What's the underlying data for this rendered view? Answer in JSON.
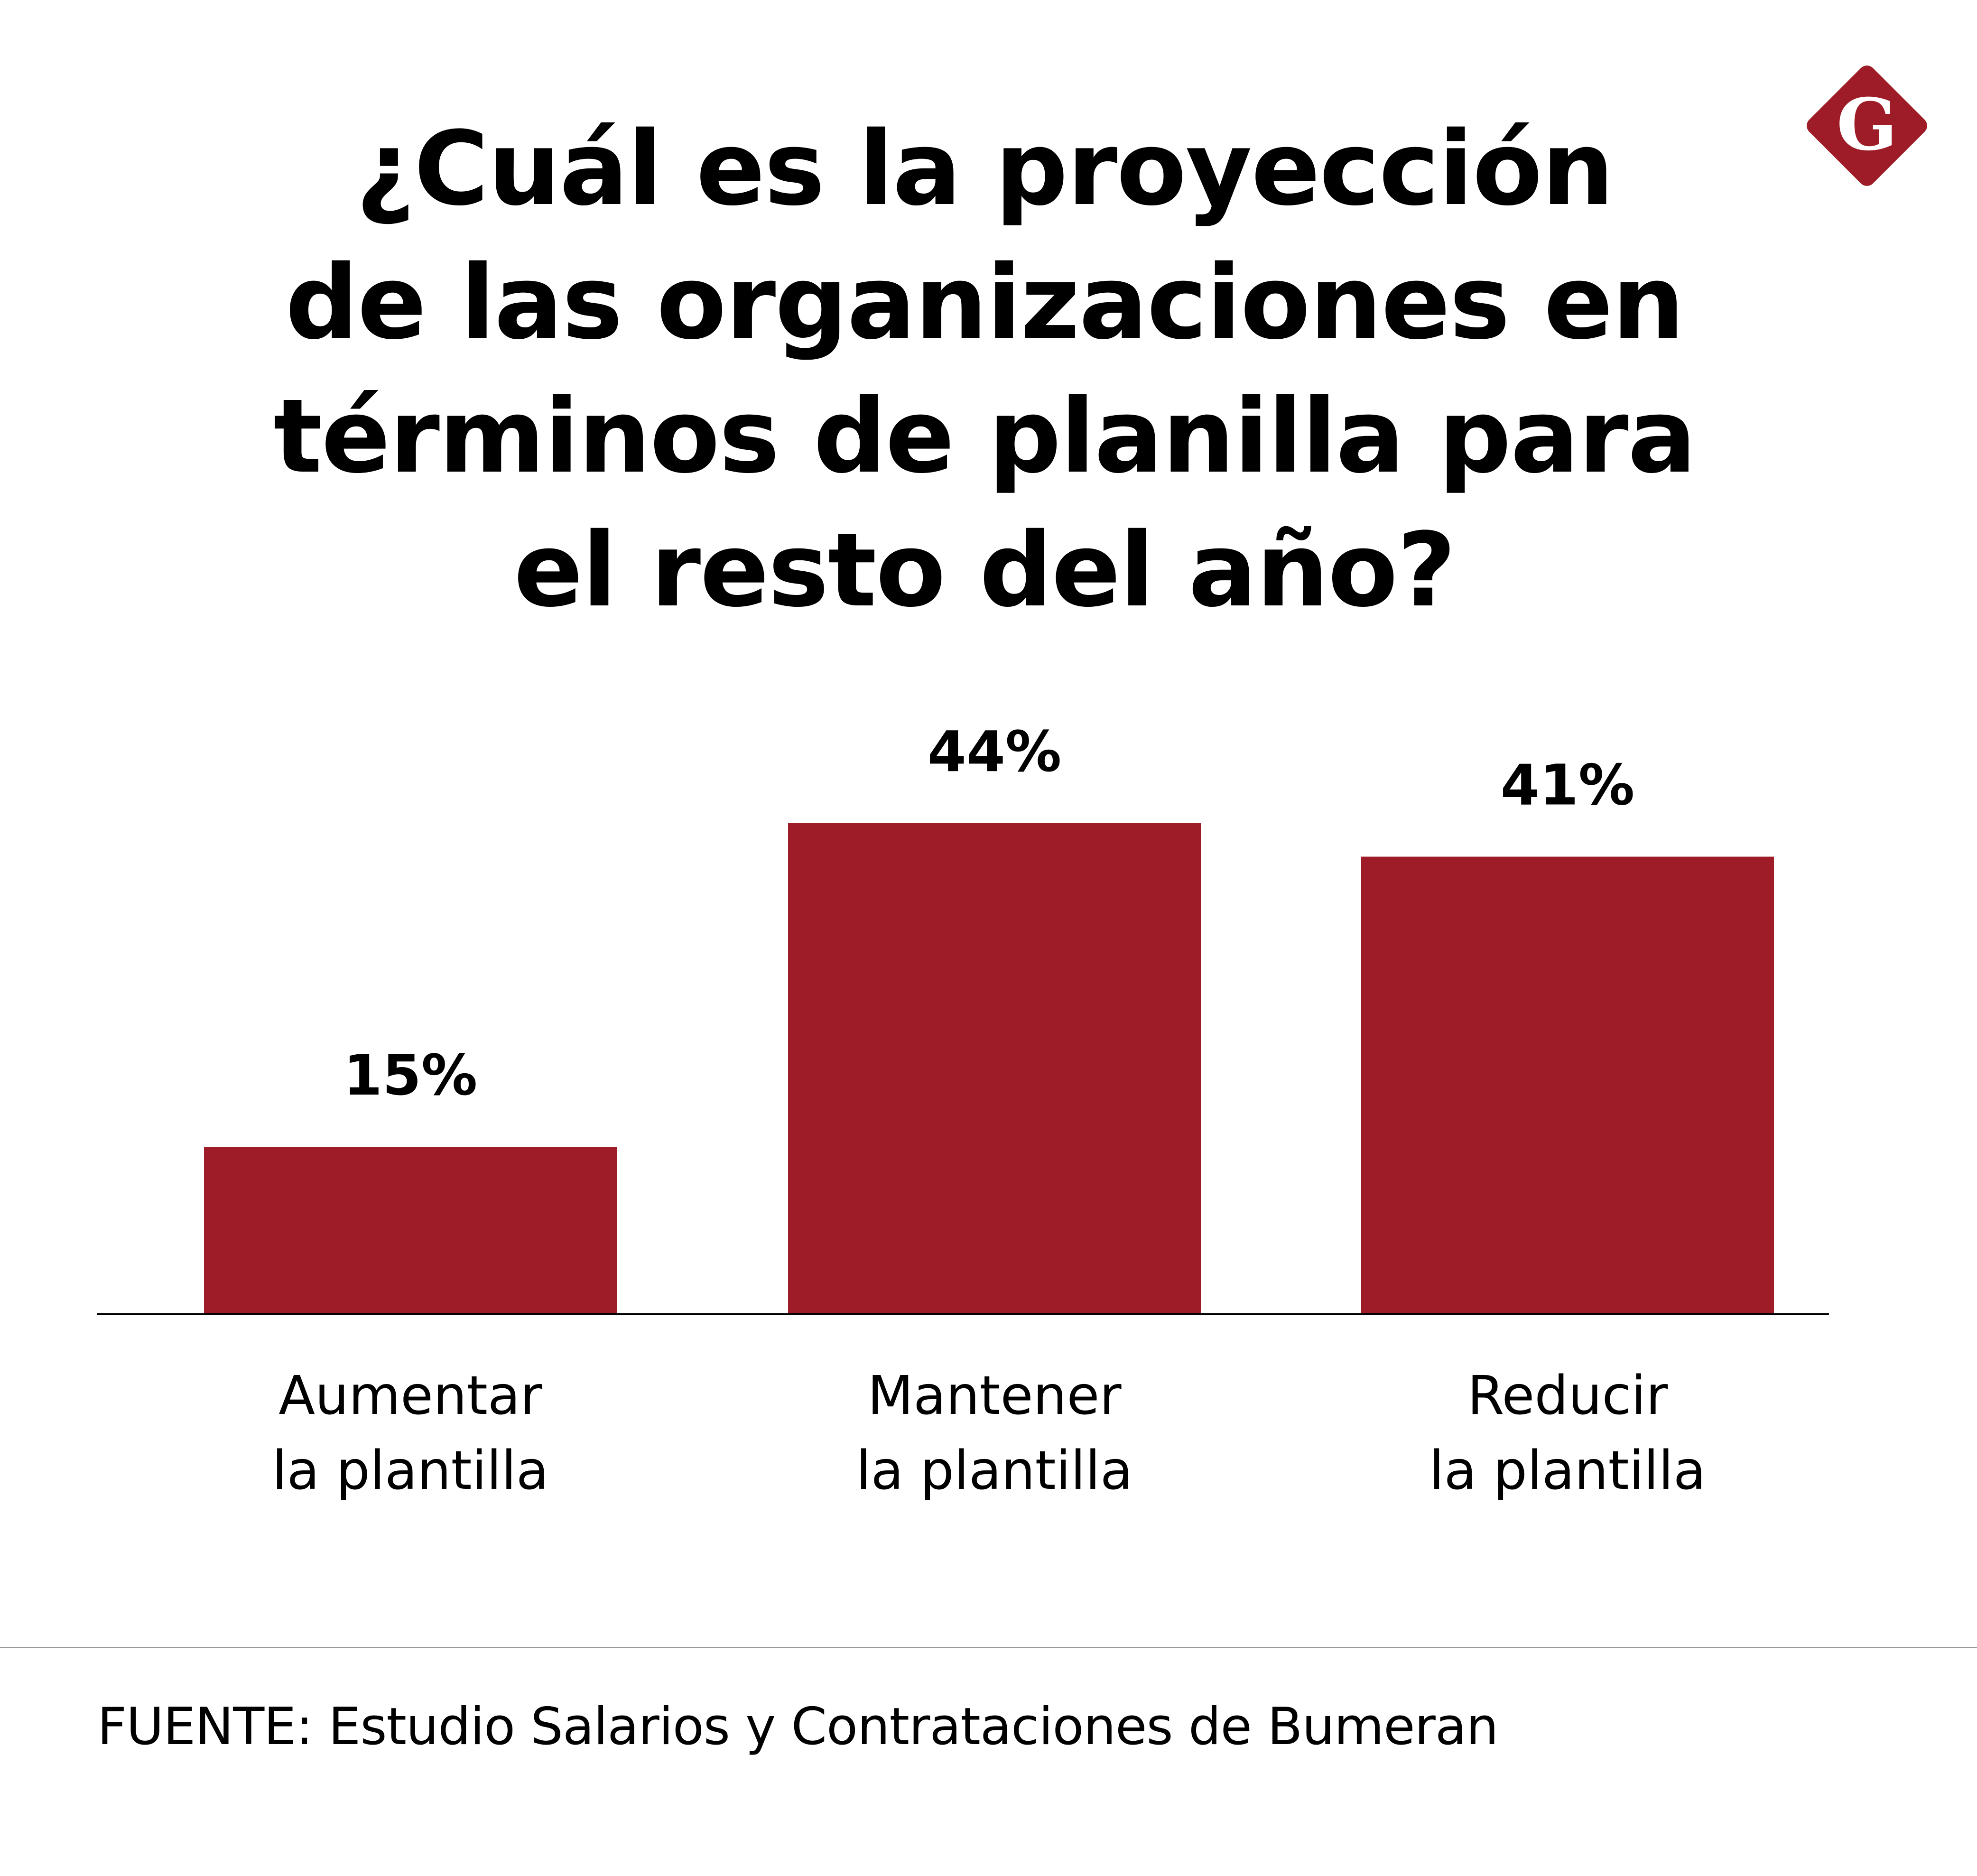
{
  "title_lines": [
    "¿Cuál es la proyección",
    "de las organizaciones en",
    "términos de planilla para",
    "el resto del año?"
  ],
  "logo": {
    "letter": "G",
    "icon": "diamond-g-logo",
    "color": "#9e1c28"
  },
  "colors": {
    "bar": "#9e1c28",
    "text": "#000000",
    "baseline": "#000000",
    "divider": "#999999"
  },
  "chart_data": {
    "type": "bar",
    "title": "¿Cuál es la proyección de las organizaciones en términos de planilla para el resto del año?",
    "categories": [
      [
        "Aumentar",
        "la plantilla"
      ],
      [
        "Mantener",
        "la plantilla"
      ],
      [
        "Reducir",
        "la plantilla"
      ]
    ],
    "values": [
      15,
      44,
      41
    ],
    "value_labels": [
      "15%",
      "44%",
      "41%"
    ],
    "unit": "%",
    "xlabel": "",
    "ylabel": "",
    "ylim": [
      0,
      44
    ],
    "grid": false,
    "legend": "none",
    "y_axis_shown": false
  },
  "source": "FUENTE: Estudio Salarios y Contrataciones de Bumeran"
}
